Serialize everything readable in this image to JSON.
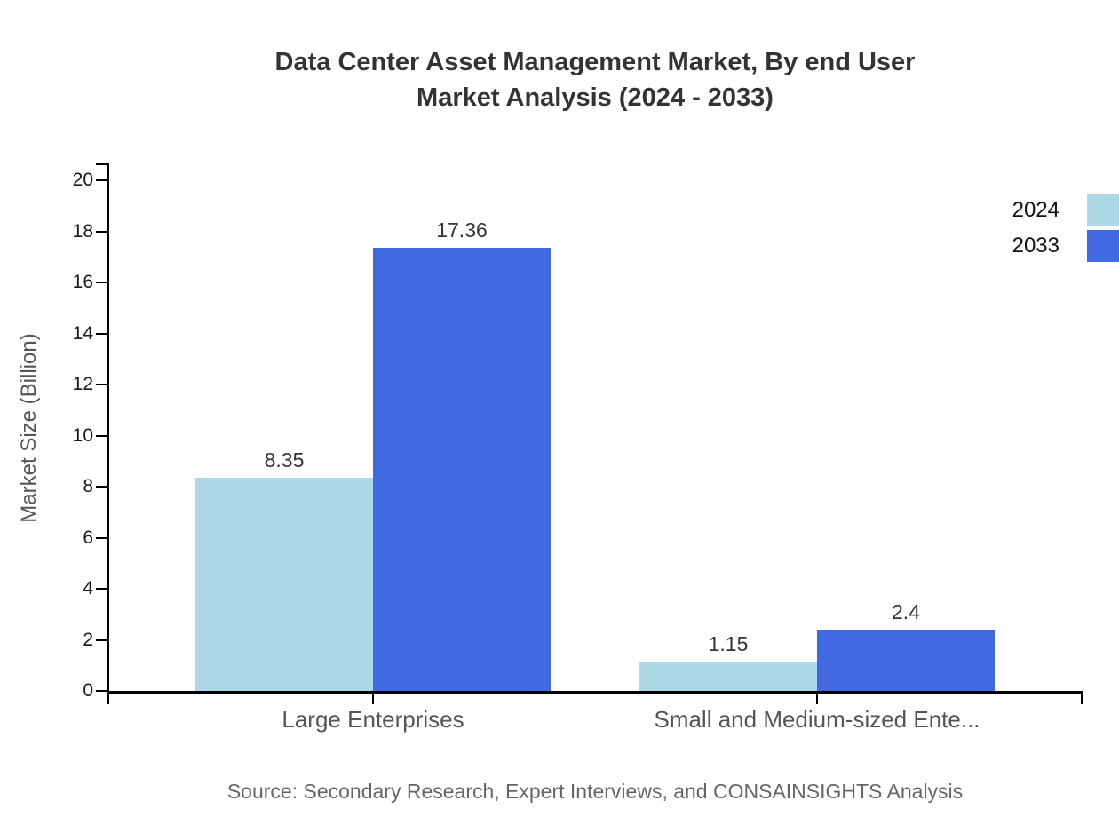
{
  "title": {
    "line1": "Data Center Asset Management Market, By end User",
    "line2": "Market Analysis (2024 - 2033)"
  },
  "source": "Source: Secondary Research, Expert Interviews, and CONSAINSIGHTS Analysis",
  "legend": {
    "position": "top-right",
    "items": [
      {
        "label": "2024",
        "color": "#ADD8E6"
      },
      {
        "label": "2033",
        "color": "#4169E1"
      }
    ]
  },
  "colors": {
    "series_2024": "#ADD8E6",
    "series_2033": "#4169E1",
    "axis": "#000000",
    "title_text": "#333333",
    "muted_text": "#555555",
    "source_text": "#666666"
  },
  "chart_data": {
    "type": "bar",
    "title": "Data Center Asset Management Market, By end User Market Analysis (2024 - 2033)",
    "categories": [
      "Large Enterprises",
      "Small and Medium-sized Ente..."
    ],
    "series": [
      {
        "name": "2024",
        "color": "#ADD8E6",
        "values": [
          8.35,
          1.15
        ]
      },
      {
        "name": "2033",
        "color": "#4169E1",
        "values": [
          17.36,
          2.4
        ]
      }
    ],
    "value_labels": [
      [
        "8.35",
        "1.15"
      ],
      [
        "17.36",
        "2.4"
      ]
    ],
    "xlabel": "",
    "ylabel": "Market Size (Billion)",
    "ylim": [
      0,
      20
    ],
    "yticks": [
      0,
      2,
      4,
      6,
      8,
      10,
      12,
      14,
      16,
      18,
      20
    ],
    "grid": false,
    "legend_position": "top-right"
  }
}
